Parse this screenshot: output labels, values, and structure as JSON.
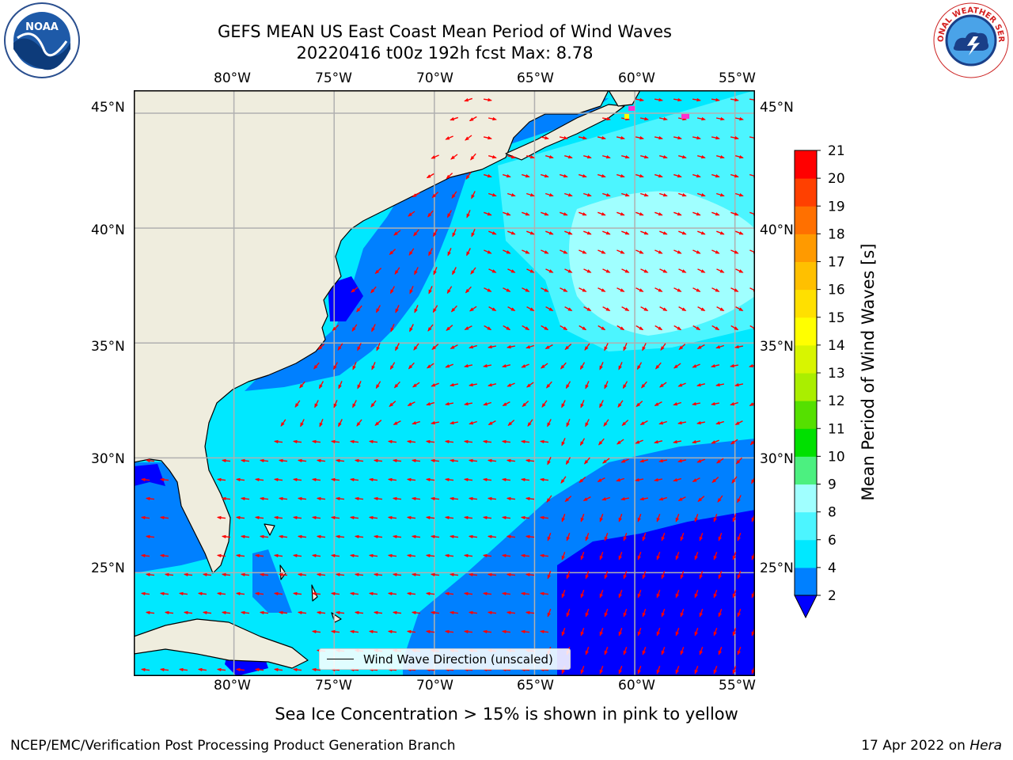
{
  "title": {
    "line1": "GEFS MEAN US East Coast Mean Period of Wind Waves",
    "line2": "20220416 t00z 192h fcst   Max: 8.78"
  },
  "map": {
    "lon_ticks": [
      "80°W",
      "75°W",
      "70°W",
      "65°W",
      "60°W",
      "55°W"
    ],
    "lat_ticks": [
      "45°N",
      "40°N",
      "35°N",
      "30°N",
      "25°N"
    ],
    "lon_range": [
      -85,
      -54
    ],
    "lat_range": [
      20.5,
      46
    ],
    "gridlines": true,
    "land_color": "#efedde",
    "arrow_color": "#ff0000",
    "legend": {
      "label": "Wind Wave Direction (unscaled)",
      "placement": "lower-center"
    }
  },
  "colorbar": {
    "label": "Mean Period of Wind Waves [s]",
    "levels": [
      2,
      4,
      6,
      8,
      9,
      10,
      11,
      12,
      13,
      14,
      15,
      16,
      17,
      18,
      19,
      20,
      21
    ],
    "colors": [
      "#0080ff",
      "#00e8ff",
      "#4cf5ff",
      "#a0ffff",
      "#4cf080",
      "#00e000",
      "#55e000",
      "#aaee00",
      "#d8f500",
      "#ffff00",
      "#ffe000",
      "#ffc000",
      "#ff9a00",
      "#ff7000",
      "#ff4000",
      "#ff0000"
    ],
    "under_color": "#0000ff",
    "extend": "min"
  },
  "chart_data": {
    "type": "heatmap",
    "title": "GEFS MEAN US East Coast Mean Period of Wind Waves",
    "subtitle": "20220416 t00z 192h fcst   Max: 8.78",
    "variable": "Mean Period of Wind Waves [s]",
    "max_value": 8.78,
    "xlabel": "",
    "ylabel": "",
    "x_ticks": [
      "80°W",
      "75°W",
      "70°W",
      "65°W",
      "60°W",
      "55°W"
    ],
    "y_ticks": [
      "45°N",
      "40°N",
      "35°N",
      "30°N",
      "25°N"
    ],
    "xlim": [
      -85,
      -54
    ],
    "ylim": [
      20.5,
      46
    ],
    "color_levels": [
      2,
      4,
      6,
      8,
      9,
      10,
      11,
      12,
      13,
      14,
      15,
      16,
      17,
      18,
      19,
      20,
      21
    ],
    "grid": true,
    "legend": "lower-center"
  },
  "note": "Sea Ice Concentration > 15% is shown in pink to yellow",
  "footer": {
    "left": "NCEP/EMC/Verification Post Processing Product Generation Branch",
    "date": "17 Apr 2022 on ",
    "machine": "Hera"
  },
  "logos": {
    "left": "NOAA",
    "right": "NATIONAL WEATHER SERVICE"
  }
}
